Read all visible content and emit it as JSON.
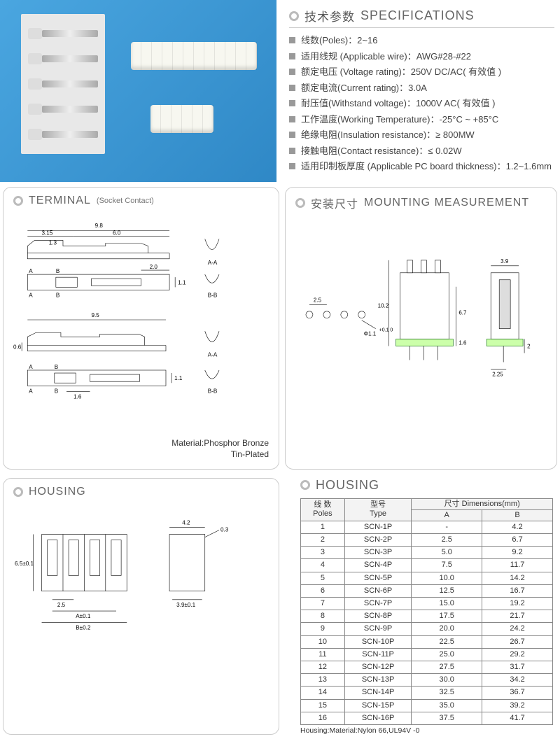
{
  "specs": {
    "title_cn": "技术参数",
    "title_en": "SPECIFICATIONS",
    "items": [
      {
        "label": "线数(Poles)：",
        "value": "2~16"
      },
      {
        "label": "适用线规 (Applicable wire)：",
        "value": "AWG#28-#22"
      },
      {
        "label": "额定电压 (Voltage rating)：",
        "value": "250V DC/AC( 有效值 )"
      },
      {
        "label": "额定电流(Current rating)：",
        "value": "3.0A"
      },
      {
        "label": "耐压值(Withstand voltage)：",
        "value": "1000V AC( 有效值 )"
      },
      {
        "label": "工作温度(Working Temperature)：",
        "value": "-25°C ~ +85°C"
      },
      {
        "label": "绝缘电阻(Insulation resistance)：",
        "value": "≥ 800MW"
      },
      {
        "label": "接触电阻(Contact resistance)：",
        "value": "≤ 0.02W"
      },
      {
        "label": "适用印制板厚度 (Applicable PC board thickness)：",
        "value": "1.2~1.6mm"
      }
    ]
  },
  "terminal": {
    "title": "TERMINAL",
    "subtitle": "(Socket Contact)",
    "dims": {
      "len1_total": "9.8",
      "len1_a": "3.15",
      "len1_b": "6.0",
      "len1_c": "1.3",
      "len1_d": "2.0",
      "len1_e": "1.1",
      "len2_total": "9.5",
      "len2_f": "0.6",
      "len2_g": "1.6",
      "len2_h": "1.1",
      "sect_aa": "A-A",
      "sect_bb": "B-B"
    },
    "material_line1": "Material:Phosphor Bronze",
    "material_line2": "Tin-Plated"
  },
  "mounting": {
    "title_cn": "安装尺寸",
    "title_en": "MOUNTING MEASUREMENT",
    "dims": {
      "pitch": "2.5",
      "hole": "Φ1.1",
      "hole_tol": "+0.1\n 0",
      "h1": "10.2",
      "h2": "6.7",
      "h3": "1.6",
      "w1": "3.9",
      "w2": "2.25",
      "w3": "2"
    }
  },
  "housing_draw": {
    "title": "HOUSING",
    "dims": {
      "h": "6.5±0.1",
      "pitch": "2.5",
      "A": "A±0.1",
      "B": "B±0.2",
      "w": "4.2",
      "t": "0.3",
      "d": "3.9±0.1"
    }
  },
  "housing_table": {
    "title": "HOUSING",
    "header": {
      "poles_cn": "线 数",
      "poles_en": "Poles",
      "type_cn": "型号",
      "type_en": "Type",
      "dims_cn": "尺寸",
      "dims_en": "Dimensions(mm)",
      "colA": "A",
      "colB": "B"
    },
    "rows": [
      {
        "poles": "1",
        "type": "SCN-1P",
        "A": "-",
        "B": "4.2"
      },
      {
        "poles": "2",
        "type": "SCN-2P",
        "A": "2.5",
        "B": "6.7"
      },
      {
        "poles": "3",
        "type": "SCN-3P",
        "A": "5.0",
        "B": "9.2"
      },
      {
        "poles": "4",
        "type": "SCN-4P",
        "A": "7.5",
        "B": "11.7"
      },
      {
        "poles": "5",
        "type": "SCN-5P",
        "A": "10.0",
        "B": "14.2"
      },
      {
        "poles": "6",
        "type": "SCN-6P",
        "A": "12.5",
        "B": "16.7"
      },
      {
        "poles": "7",
        "type": "SCN-7P",
        "A": "15.0",
        "B": "19.2"
      },
      {
        "poles": "8",
        "type": "SCN-8P",
        "A": "17.5",
        "B": "21.7"
      },
      {
        "poles": "9",
        "type": "SCN-9P",
        "A": "20.0",
        "B": "24.2"
      },
      {
        "poles": "10",
        "type": "SCN-10P",
        "A": "22.5",
        "B": "26.7"
      },
      {
        "poles": "11",
        "type": "SCN-11P",
        "A": "25.0",
        "B": "29.2"
      },
      {
        "poles": "12",
        "type": "SCN-12P",
        "A": "27.5",
        "B": "31.7"
      },
      {
        "poles": "13",
        "type": "SCN-13P",
        "A": "30.0",
        "B": "34.2"
      },
      {
        "poles": "14",
        "type": "SCN-14P",
        "A": "32.5",
        "B": "36.7"
      },
      {
        "poles": "15",
        "type": "SCN-15P",
        "A": "35.0",
        "B": "39.2"
      },
      {
        "poles": "16",
        "type": "SCN-16P",
        "A": "37.5",
        "B": "41.7"
      }
    ],
    "note": "Housing:Material:Nylon 66,UL94V -0"
  }
}
